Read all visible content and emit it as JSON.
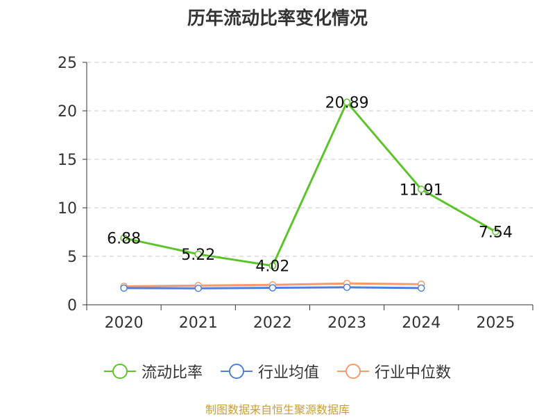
{
  "chart_data": {
    "type": "line",
    "title": "历年流动比率变化情况",
    "categories": [
      "2020",
      "2021",
      "2022",
      "2023",
      "2024",
      "2025"
    ],
    "series": [
      {
        "name": "流动比率",
        "color": "#5cc42a",
        "values": [
          6.88,
          5.22,
          4.02,
          20.89,
          11.91,
          7.54
        ],
        "show_labels": true
      },
      {
        "name": "行业均值",
        "color": "#4f7fd9",
        "values": [
          1.72,
          1.7,
          1.75,
          1.8,
          1.72,
          null
        ],
        "show_labels": false
      },
      {
        "name": "行业中位数",
        "color": "#f59a6a",
        "values": [
          1.9,
          1.98,
          2.05,
          2.2,
          2.12,
          null
        ],
        "show_labels": false
      }
    ],
    "ylim": [
      0,
      25
    ],
    "yticks": [
      0,
      5,
      10,
      15,
      20,
      25
    ],
    "grid": true,
    "legend": "bottom"
  },
  "footer": {
    "source": "制图数据来自恒生聚源数据库"
  }
}
